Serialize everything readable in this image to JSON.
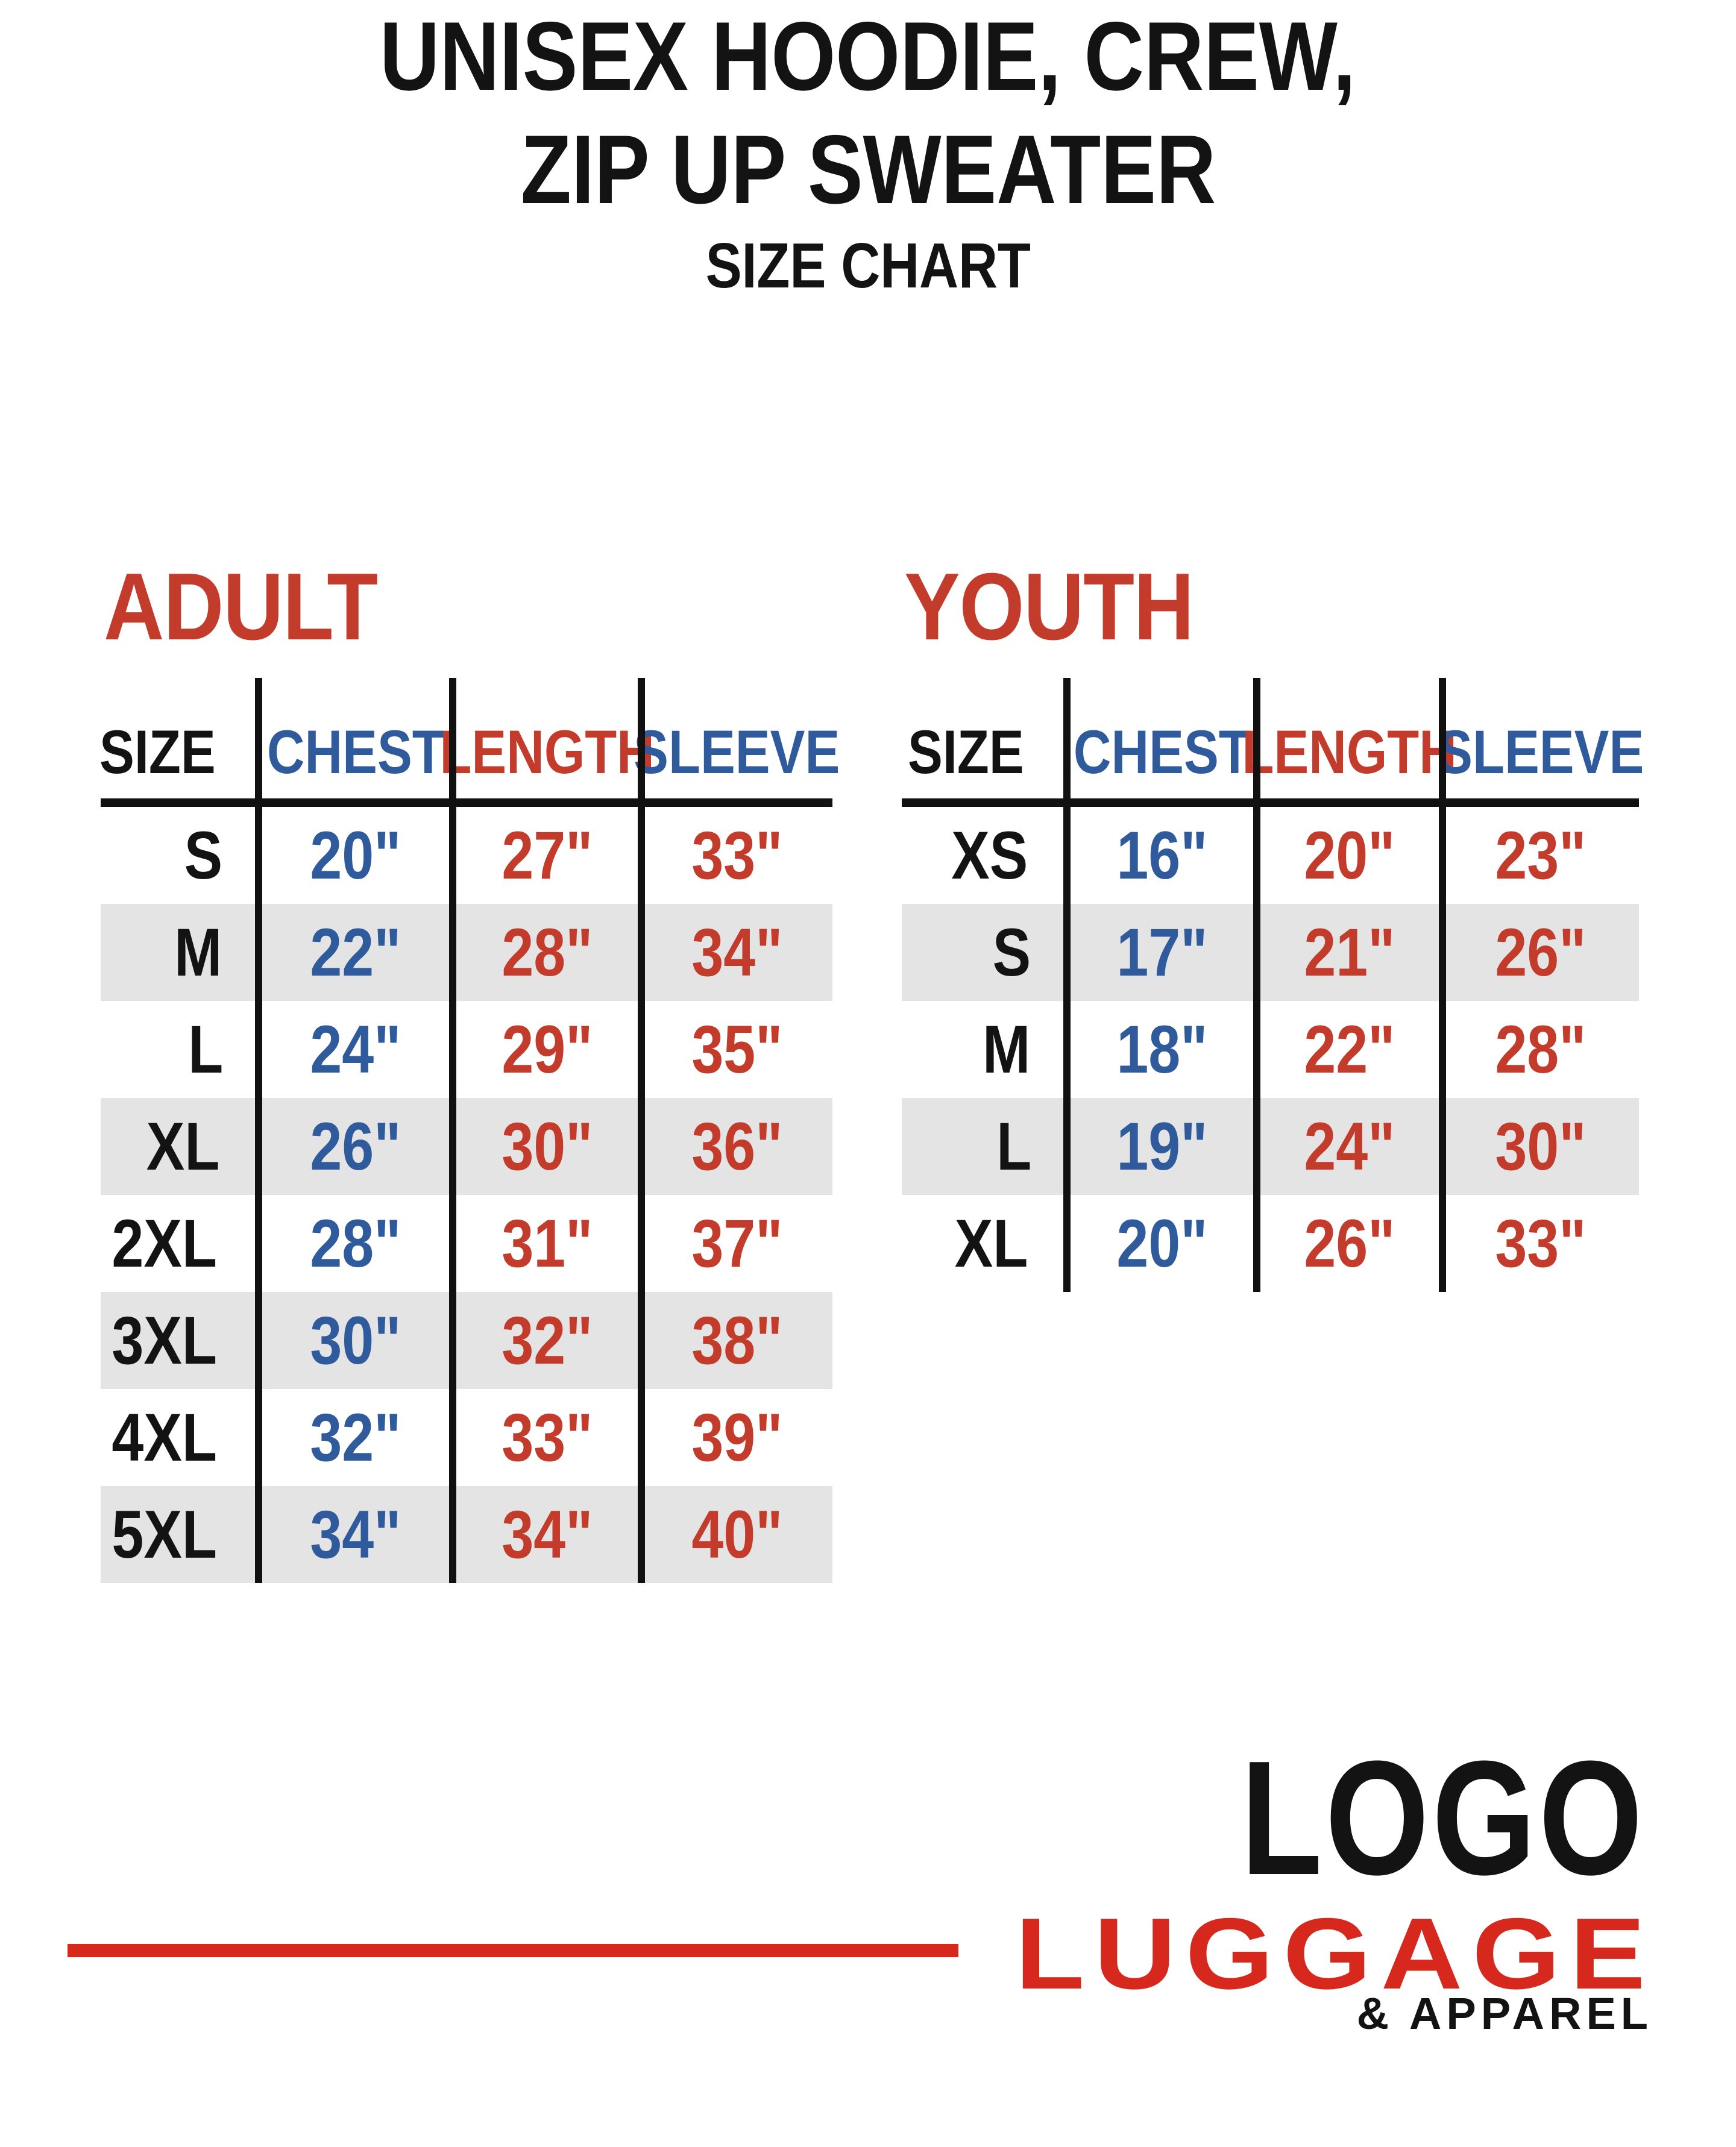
{
  "title": {
    "line1": "UNISEX HOODIE, CREW,",
    "line2": "ZIP UP SWEATER",
    "line3": "SIZE CHART"
  },
  "colors": {
    "table_red": "#C23B2B",
    "table_blue": "#2F5A9B",
    "text_black": "#131313",
    "row_shade": "#E4E4E5",
    "brand_red": "#D7281D"
  },
  "tables": [
    {
      "id": "adult",
      "heading": "ADULT",
      "columns": [
        "SIZE",
        "CHEST",
        "LENGTH",
        "SLEEVE"
      ],
      "rows": [
        [
          "S",
          "20\"",
          "27\"",
          "33\""
        ],
        [
          "M",
          "22\"",
          "28\"",
          "34\""
        ],
        [
          "L",
          "24\"",
          "29\"",
          "35\""
        ],
        [
          "XL",
          "26\"",
          "30\"",
          "36\""
        ],
        [
          "2XL",
          "28\"",
          "31\"",
          "37\""
        ],
        [
          "3XL",
          "30\"",
          "32\"",
          "38\""
        ],
        [
          "4XL",
          "32\"",
          "33\"",
          "39\""
        ],
        [
          "5XL",
          "34\"",
          "34\"",
          "40\""
        ]
      ]
    },
    {
      "id": "youth",
      "heading": "YOUTH",
      "columns": [
        "SIZE",
        "CHEST",
        "LENGTH",
        "SLEEVE"
      ],
      "rows": [
        [
          "XS",
          "16\"",
          "20\"",
          "23\""
        ],
        [
          "S",
          "17\"",
          "21\"",
          "26\""
        ],
        [
          "M",
          "18\"",
          "22\"",
          "28\""
        ],
        [
          "L",
          "19\"",
          "24\"",
          "30\""
        ],
        [
          "XL",
          "20\"",
          "26\"",
          "33\""
        ]
      ]
    }
  ],
  "brand": {
    "logo": "LOGO",
    "luggage": "LUGGAGE",
    "apparel": "& APPAREL"
  }
}
